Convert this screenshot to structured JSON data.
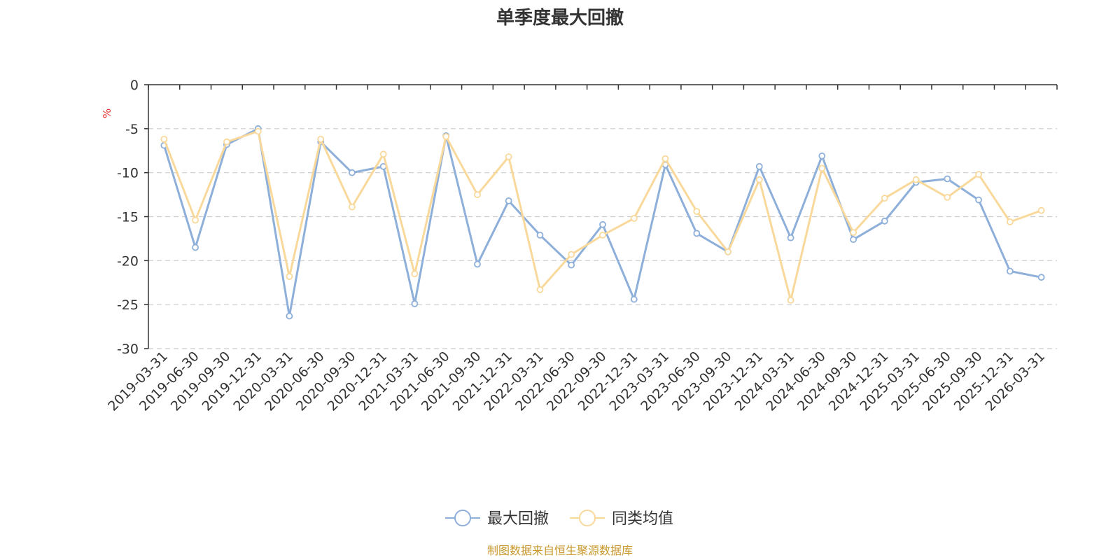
{
  "chart_data": {
    "type": "line",
    "title": "单季度最大回撤",
    "ylabel": "%",
    "ylim": [
      -30,
      0
    ],
    "yticks": [
      0,
      -5,
      -10,
      -15,
      -20,
      -25,
      -30
    ],
    "grid": true,
    "legend_position": "bottom",
    "categories": [
      "2019-03-31",
      "2019-06-30",
      "2019-09-30",
      "2019-12-31",
      "2020-03-31",
      "2020-06-30",
      "2020-09-30",
      "2020-12-31",
      "2021-03-31",
      "2021-06-30",
      "2021-09-30",
      "2021-12-31",
      "2022-03-31",
      "2022-06-30",
      "2022-09-30",
      "2022-12-31",
      "2023-03-31",
      "2023-06-30",
      "2023-09-30",
      "2023-12-31",
      "2024-03-31",
      "2024-06-30",
      "2024-09-30",
      "2024-12-31",
      "2025-03-31",
      "2025-06-30",
      "2025-09-30",
      "2025-12-31",
      "2026-03-31"
    ],
    "series": [
      {
        "name": "最大回撤",
        "color": "#8eafd9",
        "values": [
          -6.9,
          -18.5,
          -6.8,
          -5.0,
          -26.3,
          -6.5,
          -10.0,
          -9.3,
          -24.9,
          -5.8,
          -20.4,
          -13.2,
          -17.1,
          -20.5,
          -15.9,
          -24.4,
          -9.1,
          -16.9,
          -19.0,
          -9.3,
          -17.4,
          -8.1,
          -17.6,
          -15.5,
          -11.1,
          -10.7,
          -13.1,
          -21.2,
          -21.9
        ]
      },
      {
        "name": "同类均值",
        "color": "#f9d99b",
        "values": [
          -6.2,
          -15.4,
          -6.5,
          -5.3,
          -21.8,
          -6.2,
          -13.9,
          -7.9,
          -21.5,
          -5.9,
          -12.5,
          -8.2,
          -23.3,
          -19.3,
          -17.1,
          -15.2,
          -8.4,
          -14.4,
          -19.0,
          -10.8,
          -24.5,
          -9.5,
          -16.8,
          -12.9,
          -10.8,
          -12.8,
          -10.2,
          -15.6,
          -14.3
        ]
      }
    ],
    "source_note": "制图数据来自恒生聚源数据库",
    "unit_color": "#e8312b",
    "source_color": "#c8982c"
  }
}
